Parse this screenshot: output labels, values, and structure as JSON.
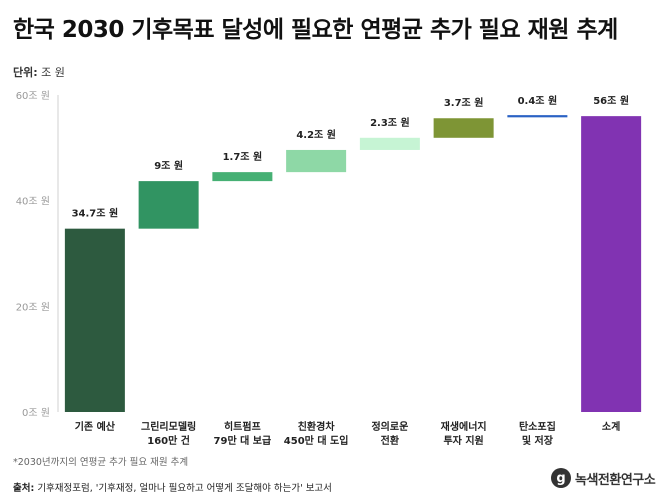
{
  "header": {
    "title": "한국 2030 기후목표 달성에 필요한 연평균 추가 필요 재원 추계",
    "unit_label": "단위:",
    "unit_value": "조 원"
  },
  "footer": {
    "footnote": "*2030년까지의 연평균 추가 필요 재원 추계",
    "source_label": "출처:",
    "source_text": "기후재정포럼, '기후재정, 얼마나 필요하고 어떻게 조달해야 하는가' 보고서",
    "logo_text": "녹색전환연구소",
    "logo_mark": "g"
  },
  "chart_data": {
    "type": "waterfall",
    "ylim": [
      0,
      60
    ],
    "yticks": [
      0,
      20,
      40,
      60
    ],
    "ytick_labels": [
      "0조 원",
      "20조 원",
      "40조 원",
      "60조 원"
    ],
    "grid": false,
    "legend": "none",
    "bars": [
      {
        "label_lines": [
          "기존 예산"
        ],
        "value_label": "34.7조 원",
        "start": 0,
        "end": 34.7,
        "color": "#2d5a3f",
        "kind": "bar"
      },
      {
        "label_lines": [
          "그린리모델링",
          "160만 건"
        ],
        "value_label": "9조 원",
        "start": 34.7,
        "end": 43.7,
        "color": "#319462",
        "kind": "bar"
      },
      {
        "label_lines": [
          "히트펌프",
          "79만 대 보급"
        ],
        "value_label": "1.7조 원",
        "start": 43.7,
        "end": 45.4,
        "color": "#46b074",
        "kind": "bar"
      },
      {
        "label_lines": [
          "친환경차",
          "450만 대 도입"
        ],
        "value_label": "4.2조 원",
        "start": 45.4,
        "end": 49.6,
        "color": "#8ed8a6",
        "kind": "bar"
      },
      {
        "label_lines": [
          "정의로운",
          "전환"
        ],
        "value_label": "2.3조 원",
        "start": 49.6,
        "end": 51.9,
        "color": "#c6f4d4",
        "kind": "bar"
      },
      {
        "label_lines": [
          "재생에너지",
          "투자 지원"
        ],
        "value_label": "3.7조 원",
        "start": 51.9,
        "end": 55.6,
        "color": "#7e9535",
        "kind": "bar"
      },
      {
        "label_lines": [
          "탄소포집",
          "및 저장"
        ],
        "value_label": "0.4조 원",
        "start": 55.6,
        "end": 56.0,
        "color": "#2a62c4",
        "kind": "line"
      },
      {
        "label_lines": [
          "소계"
        ],
        "value_label": "56조 원",
        "start": 0,
        "end": 56.0,
        "color": "#8133b2",
        "kind": "bar"
      }
    ]
  }
}
